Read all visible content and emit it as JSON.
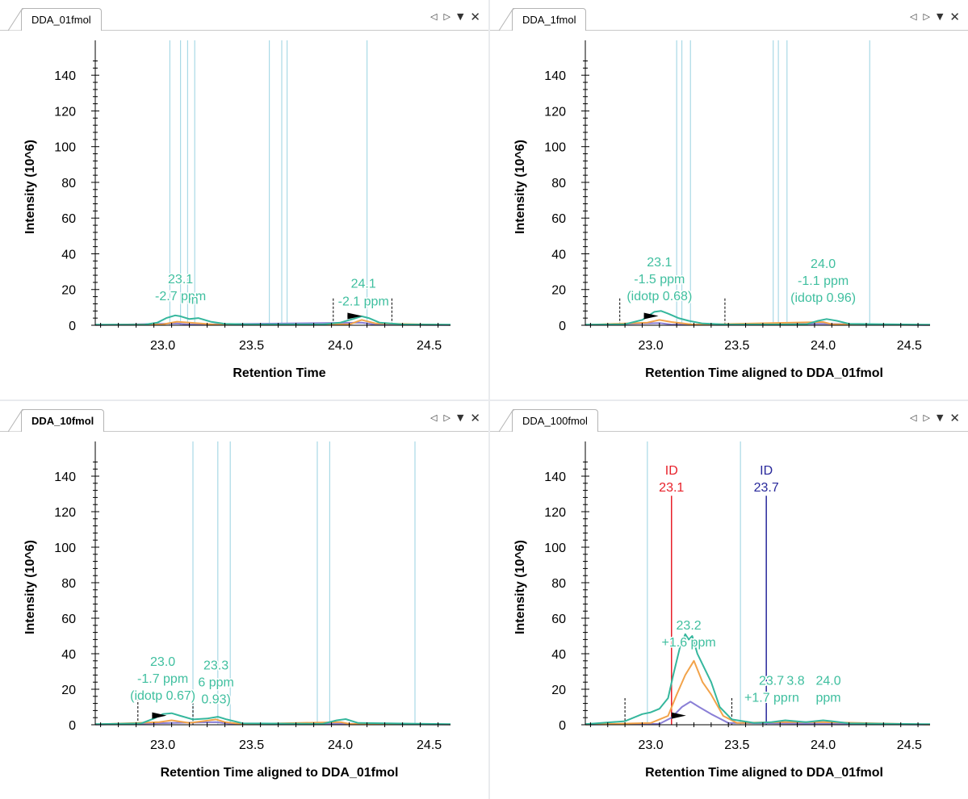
{
  "controls": {
    "prev": "◁",
    "next": "▷",
    "menu": "▼",
    "close": "✕"
  },
  "colors": {
    "teal": "#35b79d",
    "orange": "#f2a34a",
    "purple": "#8a7fd6",
    "vline": "#a9d9e6",
    "id_red": "#e8202a",
    "id_blue": "#28289b",
    "label_teal": "#3fbf9f"
  },
  "chart_data": [
    {
      "type": "line",
      "tab_title": "DDA_01fmol",
      "tab_bold": false,
      "xlabel": "Retention Time",
      "ylabel": "Intensity (10^6)",
      "xlim": [
        22.62,
        24.62
      ],
      "ylim": [
        0,
        155
      ],
      "xticks": [
        "23.0",
        "23.5",
        "24.0",
        "24.5"
      ],
      "yticks": [
        "0",
        "20",
        "40",
        "60",
        "80",
        "100",
        "120",
        "140"
      ],
      "vlines": [
        23.04,
        23.1,
        23.14,
        23.18,
        23.6,
        23.67,
        23.7,
        24.15
      ],
      "boundaries": [
        23.96,
        24.29
      ],
      "flags": [
        24.04
      ],
      "series": [
        {
          "color": "#35b79d",
          "x": [
            22.62,
            22.9,
            22.97,
            23.02,
            23.07,
            23.1,
            23.15,
            23.2,
            23.27,
            23.35,
            23.5,
            23.9,
            24.0,
            24.07,
            24.12,
            24.16,
            24.22,
            24.35,
            24.62
          ],
          "y": [
            0.3,
            0.4,
            1.5,
            4.0,
            5.5,
            5.0,
            3.5,
            4.0,
            2.0,
            0.8,
            0.5,
            0.5,
            1.5,
            3.5,
            5.0,
            4.0,
            1.5,
            0.5,
            0.3
          ]
        },
        {
          "color": "#f2a34a",
          "x": [
            22.62,
            23.0,
            23.08,
            23.15,
            23.3,
            24.05,
            24.12,
            24.2,
            24.62
          ],
          "y": [
            0.2,
            0.5,
            2.0,
            1.5,
            0.3,
            0.5,
            3.0,
            1.0,
            0.2
          ]
        },
        {
          "color": "#8a7fd6",
          "x": [
            22.62,
            23.08,
            23.15,
            24.12,
            24.2,
            24.62
          ],
          "y": [
            0.1,
            1.0,
            0.4,
            1.5,
            0.3,
            0.1
          ]
        }
      ],
      "peak_labels": [
        {
          "x": 23.1,
          "y": 14,
          "lines": [
            "23.1",
            "-2.7 ppm"
          ]
        },
        {
          "x": 23.18,
          "y": 12,
          "lines": [
            "n"
          ]
        },
        {
          "x": 24.13,
          "y": 21,
          "lines": [
            "24.1"
          ]
        },
        {
          "x": 24.13,
          "y": 11,
          "lines": [
            "-2.1 ppm"
          ]
        }
      ],
      "id_lines": []
    },
    {
      "type": "line",
      "tab_title": "DDA_1fmol",
      "tab_bold": false,
      "xlabel": "Retention Time aligned to DDA_01fmol",
      "ylabel": "Intensity (10^6)",
      "xlim": [
        22.62,
        24.62
      ],
      "ylim": [
        0,
        155
      ],
      "xticks": [
        "23.0",
        "23.5",
        "24.0",
        "24.5"
      ],
      "yticks": [
        "0",
        "20",
        "40",
        "60",
        "80",
        "100",
        "120",
        "140"
      ],
      "vlines": [
        23.15,
        23.18,
        23.23,
        23.71,
        23.74,
        23.79,
        24.27
      ],
      "boundaries": [
        22.82,
        23.43
      ],
      "flags": [
        22.96
      ],
      "series": [
        {
          "color": "#35b79d",
          "x": [
            22.62,
            22.85,
            22.95,
            23.02,
            23.06,
            23.1,
            23.16,
            23.22,
            23.3,
            23.45,
            23.9,
            23.97,
            24.02,
            24.08,
            24.15,
            24.62
          ],
          "y": [
            0.3,
            0.6,
            3.0,
            7.5,
            8.0,
            6.5,
            4.0,
            2.5,
            1.0,
            0.4,
            0.5,
            2.5,
            3.5,
            2.5,
            0.8,
            0.3
          ]
        },
        {
          "color": "#f2a34a",
          "x": [
            22.62,
            22.98,
            23.05,
            23.12,
            23.25,
            24.0,
            24.05,
            24.62
          ],
          "y": [
            0.2,
            1.5,
            3.0,
            1.8,
            0.3,
            1.8,
            0.6,
            0.2
          ]
        },
        {
          "color": "#8a7fd6",
          "x": [
            22.62,
            23.05,
            23.12,
            24.0,
            24.62
          ],
          "y": [
            0.1,
            1.2,
            0.4,
            0.8,
            0.1
          ]
        }
      ],
      "peak_labels": [
        {
          "x": 23.05,
          "y": 14,
          "lines": [
            "23.1",
            "-1.5 ppm",
            "(idotp 0.68)"
          ]
        },
        {
          "x": 24.0,
          "y": 13,
          "lines": [
            "24.0",
            "-1.1 ppm",
            "(idotp 0.96)"
          ]
        }
      ],
      "id_lines": []
    },
    {
      "type": "line",
      "tab_title": "DDA_10fmol",
      "tab_bold": true,
      "xlabel": "Retention Time aligned to DDA_01fmol",
      "ylabel": "Intensity (10^6)",
      "xlim": [
        22.62,
        24.62
      ],
      "ylim": [
        0,
        155
      ],
      "xticks": [
        "23.0",
        "23.5",
        "24.0",
        "24.5"
      ],
      "yticks": [
        "0",
        "20",
        "40",
        "60",
        "80",
        "100",
        "120",
        "140"
      ],
      "vlines": [
        23.17,
        23.31,
        23.38,
        23.87,
        23.94,
        24.42
      ],
      "boundaries": [
        22.86,
        23.17
      ],
      "flags": [
        22.94
      ],
      "series": [
        {
          "color": "#35b79d",
          "x": [
            22.62,
            22.88,
            22.95,
            23.0,
            23.05,
            23.1,
            23.17,
            23.25,
            23.31,
            23.36,
            23.45,
            23.9,
            23.98,
            24.03,
            24.1,
            24.62
          ],
          "y": [
            0.3,
            0.8,
            3.5,
            6.0,
            6.5,
            5.0,
            3.0,
            3.5,
            4.5,
            3.0,
            0.8,
            0.5,
            2.5,
            3.2,
            1.0,
            0.3
          ]
        },
        {
          "color": "#f2a34a",
          "x": [
            22.62,
            22.98,
            23.05,
            23.15,
            23.3,
            23.35,
            23.45,
            24.0,
            24.05,
            24.62
          ],
          "y": [
            0.2,
            1.5,
            2.5,
            1.0,
            3.0,
            1.5,
            0.3,
            1.5,
            0.5,
            0.2
          ]
        },
        {
          "color": "#8a7fd6",
          "x": [
            22.62,
            23.05,
            23.3,
            23.4,
            24.02,
            24.62
          ],
          "y": [
            0.1,
            1.0,
            1.5,
            0.3,
            0.6,
            0.1
          ]
        }
      ],
      "peak_labels": [
        {
          "x": 23.0,
          "y": 14,
          "lines": [
            "23.0",
            "-1.7 ppm",
            "(idotp 0.67)"
          ]
        },
        {
          "x": 23.3,
          "y": 12,
          "lines": [
            "23.3",
            "6 ppm",
            "0.93)"
          ]
        }
      ],
      "id_lines": []
    },
    {
      "type": "line",
      "tab_title": "DDA_100fmol",
      "tab_bold": false,
      "xlabel": "Retention Time aligned to DDA_01fmol",
      "ylabel": "Intensity (10^6)",
      "xlim": [
        22.62,
        24.62
      ],
      "ylim": [
        0,
        155
      ],
      "xticks": [
        "23.0",
        "23.5",
        "24.0",
        "24.5"
      ],
      "yticks": [
        "0",
        "20",
        "40",
        "60",
        "80",
        "100",
        "120",
        "140"
      ],
      "vlines": [
        22.98,
        23.52
      ],
      "boundaries": [
        22.85,
        23.47
      ],
      "flags": [
        23.12
      ],
      "series": [
        {
          "color": "#35b79d",
          "x": [
            22.62,
            22.85,
            22.95,
            23.0,
            23.05,
            23.1,
            23.13,
            23.17,
            23.2,
            23.22,
            23.24,
            23.27,
            23.3,
            23.35,
            23.4,
            23.47,
            23.6,
            23.7,
            23.78,
            23.9,
            24.0,
            24.05,
            24.15,
            24.62
          ],
          "y": [
            0.3,
            2.0,
            6.0,
            7.0,
            9.0,
            15.0,
            28.0,
            44.0,
            51.0,
            48.0,
            50.0,
            40.0,
            34.0,
            24.0,
            10.0,
            3.0,
            1.0,
            1.5,
            2.5,
            1.5,
            2.5,
            2.0,
            0.8,
            0.3
          ]
        },
        {
          "color": "#f2a34a",
          "x": [
            22.62,
            23.0,
            23.1,
            23.15,
            23.2,
            23.25,
            23.3,
            23.35,
            23.42,
            23.5,
            23.75,
            24.0,
            24.62
          ],
          "y": [
            0.1,
            1.0,
            5.0,
            17.0,
            28.0,
            36.0,
            24.0,
            17.0,
            5.0,
            1.0,
            1.5,
            1.5,
            0.1
          ]
        },
        {
          "color": "#8a7fd6",
          "x": [
            22.62,
            23.05,
            23.12,
            23.18,
            23.23,
            23.28,
            23.35,
            23.45,
            24.62
          ],
          "y": [
            0.1,
            0.5,
            4.0,
            10.0,
            13.0,
            10.0,
            6.0,
            1.0,
            0.1
          ]
        }
      ],
      "peak_labels": [
        {
          "x": 23.22,
          "y": 44,
          "lines": [
            "23.2",
            "+1.6 ppm"
          ]
        },
        {
          "x": 23.7,
          "y": 13,
          "lines": [
            "23.7",
            "+1.7 ppm"
          ]
        },
        {
          "x": 23.84,
          "y": 13,
          "lines": [
            "3.8",
            "n"
          ]
        },
        {
          "x": 24.03,
          "y": 13,
          "lines": [
            "24.0",
            "ppm"
          ]
        }
      ],
      "id_lines": [
        {
          "x": 23.12,
          "y_top": 129,
          "color": "#e8202a",
          "lines": [
            "ID",
            "23.1"
          ]
        },
        {
          "x": 23.67,
          "y_top": 129,
          "color": "#28289b",
          "lines": [
            "ID",
            "23.7"
          ]
        }
      ]
    }
  ]
}
